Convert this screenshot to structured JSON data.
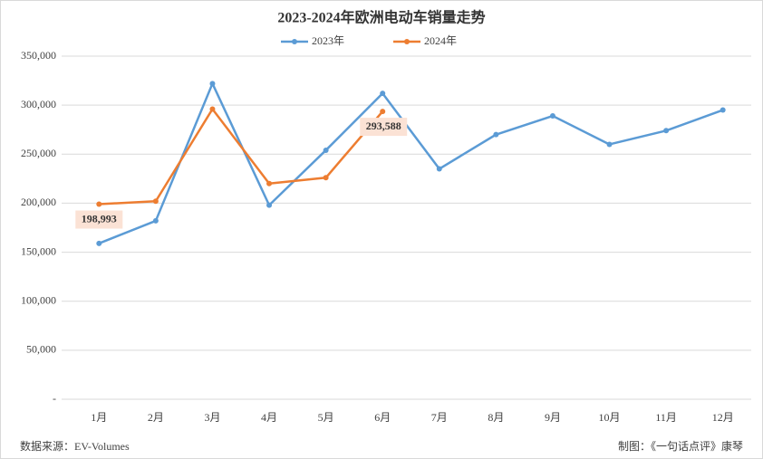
{
  "chart_data": {
    "type": "line",
    "title": "2023-2024年欧洲电动车销量走势",
    "categories": [
      "1月",
      "2月",
      "3月",
      "4月",
      "5月",
      "6月",
      "7月",
      "8月",
      "9月",
      "10月",
      "11月",
      "12月"
    ],
    "series": [
      {
        "name": "2023年",
        "color": "#5b9bd5",
        "values": [
          159000,
          182000,
          322000,
          198000,
          254000,
          312000,
          235000,
          270000,
          289000,
          260000,
          274000,
          295000
        ]
      },
      {
        "name": "2024年",
        "color": "#ed7d31",
        "values": [
          198993,
          202000,
          296000,
          220000,
          226000,
          293588,
          null,
          null,
          null,
          null,
          null,
          null
        ],
        "value_labels": [
          "198,993",
          null,
          null,
          null,
          null,
          "293,588",
          null,
          null,
          null,
          null,
          null,
          null
        ]
      }
    ],
    "ylim": [
      0,
      350000
    ],
    "yticks": [
      {
        "value": 0,
        "label": "-"
      },
      {
        "value": 50000,
        "label": "50,000"
      },
      {
        "value": 100000,
        "label": "100,000"
      },
      {
        "value": 150000,
        "label": "150,000"
      },
      {
        "value": 200000,
        "label": "200,000"
      },
      {
        "value": 250000,
        "label": "250,000"
      },
      {
        "value": 300000,
        "label": "300,000"
      },
      {
        "value": 350000,
        "label": "350,000"
      }
    ],
    "grid": true,
    "legend": "top",
    "source": "数据来源：EV-Volumes",
    "credit": "制图：《一句话点评》康琴"
  }
}
